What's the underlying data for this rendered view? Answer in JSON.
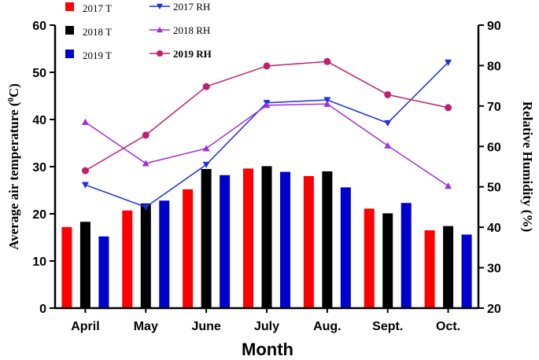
{
  "chart_data": {
    "type": "bar",
    "categories": [
      "April",
      "May",
      "June",
      "July",
      "Aug.",
      "Sept.",
      "Oct."
    ],
    "xlabel": "Month",
    "ylabel_left": "Average air temperature (0C)",
    "ylabel_left_main": "Average air temperature (",
    "ylabel_left_sup": "0",
    "ylabel_left_tail": "C)",
    "ylabel_right": "Relative Humidity (%)",
    "ylim_left": [
      0,
      60
    ],
    "ylim_right": [
      20,
      90
    ],
    "yticks_left": [
      "0",
      "10",
      "20",
      "30",
      "40",
      "50",
      "60"
    ],
    "yticks_right": [
      "20",
      "30",
      "40",
      "50",
      "60",
      "70",
      "80",
      "90"
    ],
    "bar_series": [
      {
        "name": "2017 T",
        "color": "#ff0000",
        "values": [
          17.2,
          20.7,
          25.2,
          29.6,
          28.0,
          21.1,
          16.5
        ]
      },
      {
        "name": "2018 T",
        "color": "#000000",
        "values": [
          18.3,
          22.2,
          29.5,
          30.1,
          29.0,
          20.1,
          17.4
        ]
      },
      {
        "name": "2019 T",
        "color": "#0000cc",
        "values": [
          15.2,
          22.8,
          28.2,
          28.9,
          25.6,
          22.3,
          15.6
        ]
      }
    ],
    "line_series": [
      {
        "name": "2017 RH",
        "color": "#1f2fe0",
        "marker": "triangle-down",
        "values": [
          50.5,
          45.0,
          55.5,
          70.8,
          71.5,
          65.8,
          80.8
        ]
      },
      {
        "name": "2018 RH",
        "color": "#a030d8",
        "marker": "triangle-up",
        "values": [
          66.0,
          55.8,
          59.5,
          70.2,
          70.5,
          60.2,
          50.2
        ]
      },
      {
        "name": "2019 RH",
        "color": "#c0206a",
        "marker": "circle",
        "values": [
          54.0,
          62.8,
          74.8,
          79.9,
          81.0,
          72.8,
          69.6
        ]
      }
    ],
    "legend": [
      "2017 T",
      "2018 T",
      "2019 T",
      "2017 RH",
      "2018 RH",
      "2019 RH"
    ]
  }
}
